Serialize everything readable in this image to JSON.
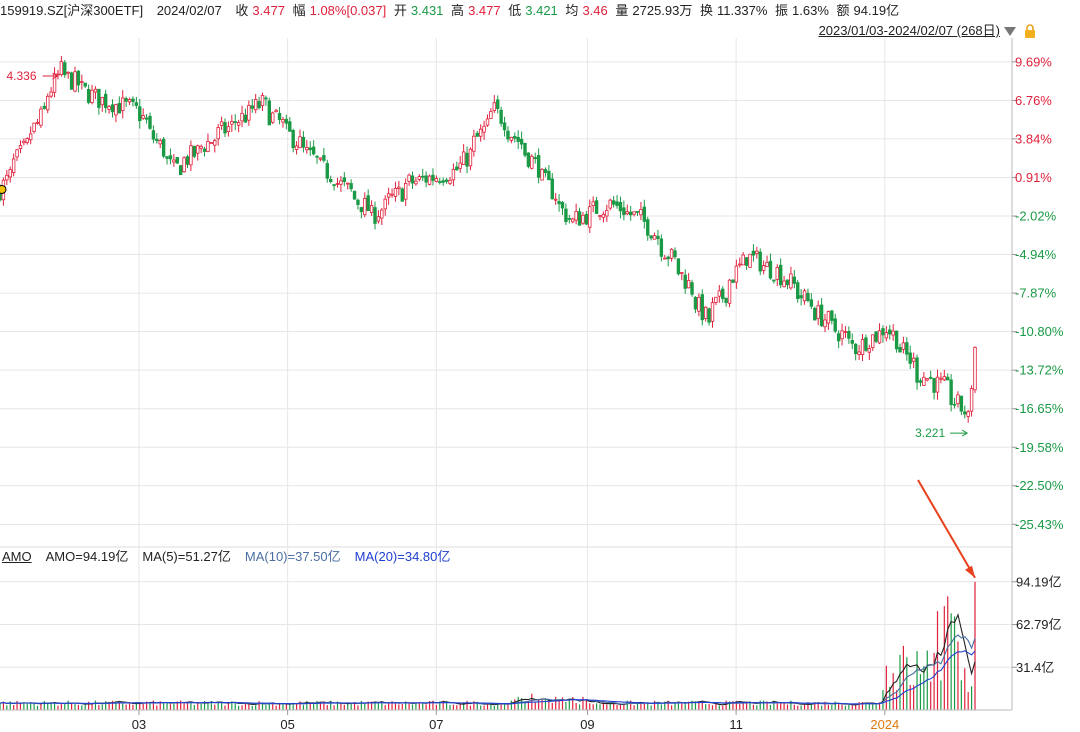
{
  "header": {
    "code": "159919.SZ[沪深300ETF]",
    "date": "2024/02/07",
    "close_label": "收",
    "close": "3.477",
    "chg_label": "幅",
    "chg": "1.08%[0.037]",
    "open_label": "开",
    "open": "3.431",
    "high_label": "高",
    "high": "3.477",
    "low_label": "低",
    "low": "3.421",
    "avg_label": "均",
    "avg": "3.46",
    "vol_label": "量",
    "vol": "2725.93万",
    "turnover_label": "换",
    "turnover": "11.337%",
    "amp_label": "振",
    "amp": "1.63%",
    "amount_label": "额",
    "amount": "94.19亿"
  },
  "range_label": "2023/01/03-2024/02/07 (268日)",
  "colors": {
    "up": "#e0203b",
    "down": "#1a9a45",
    "grid": "#e6e6e6",
    "ma5": "#222222",
    "ma10": "#4a6fa0",
    "ma20": "#1f3fd0",
    "arrow": "#e8401c"
  },
  "amo_legend": {
    "name": "AMO",
    "amo": "AMO=94.19亿",
    "ma5": "MA(5)=51.27亿",
    "ma10": "MA(10)=37.50亿",
    "ma20": "MA(20)=34.80亿"
  },
  "chart_data": [
    {
      "type": "candlestick",
      "title": "",
      "y_scale": "percent change from base close",
      "ylim": [
        -27.0,
        11.5
      ],
      "y_ticks": [
        "9.69%",
        "6.76%",
        "3.84%",
        "0.91%",
        "-2.02%",
        "-4.94%",
        "-7.87%",
        "-10.80%",
        "-13.72%",
        "-16.65%",
        "-19.58%",
        "-22.50%",
        "-25.43%"
      ],
      "y_tick_values": [
        9.69,
        6.76,
        3.84,
        0.91,
        -2.02,
        -4.94,
        -7.87,
        -10.8,
        -13.72,
        -16.65,
        -19.58,
        -22.5,
        -25.43
      ],
      "x_ticks": [
        "03",
        "05",
        "07",
        "09",
        "11",
        "2024"
      ],
      "x_tick_dates": [
        "2023-03",
        "2023-05",
        "2023-07",
        "2023-09",
        "2023-11",
        "2024-01"
      ],
      "annotations": [
        {
          "text": "4.336",
          "type": "period_high",
          "date": "2023-01-27",
          "value": 4.336
        },
        {
          "text": "3.221",
          "type": "period_low",
          "date": "2024-02-05",
          "value": 3.221
        }
      ],
      "trend_keypoints": [
        [
          "2023-01-03",
          0.0
        ],
        [
          "2023-01-18",
          5.0
        ],
        [
          "2023-01-27",
          9.0
        ],
        [
          "2023-02-10",
          7.0
        ],
        [
          "2023-02-28",
          6.0
        ],
        [
          "2023-03-15",
          1.5
        ],
        [
          "2023-04-01",
          4.0
        ],
        [
          "2023-04-20",
          6.5
        ],
        [
          "2023-05-10",
          2.5
        ],
        [
          "2023-05-25",
          0.0
        ],
        [
          "2023-06-05",
          -2.0
        ],
        [
          "2023-06-20",
          0.5
        ],
        [
          "2023-07-10",
          1.5
        ],
        [
          "2023-07-25",
          6.0
        ],
        [
          "2023-08-10",
          2.0
        ],
        [
          "2023-08-25",
          -2.5
        ],
        [
          "2023-09-10",
          -1.0
        ],
        [
          "2023-09-25",
          -2.5
        ],
        [
          "2023-10-10",
          -6.5
        ],
        [
          "2023-10-20",
          -10.0
        ],
        [
          "2023-11-05",
          -5.0
        ],
        [
          "2023-11-20",
          -6.5
        ],
        [
          "2023-12-05",
          -9.5
        ],
        [
          "2023-12-20",
          -12.0
        ],
        [
          "2024-01-02",
          -10.5
        ],
        [
          "2024-01-15",
          -14.0
        ],
        [
          "2024-01-25",
          -15.0
        ],
        [
          "2024-02-05",
          -17.5
        ],
        [
          "2024-02-07",
          -12.0
        ]
      ]
    },
    {
      "type": "bar",
      "title": "AMO",
      "y_ticks": [
        "94.19亿",
        "62.79亿",
        "31.4亿"
      ],
      "y_tick_values": [
        94.19,
        62.79,
        31.4
      ],
      "ylim": [
        0,
        108
      ],
      "unit": "亿",
      "last_value": 94.19,
      "series": [
        {
          "name": "MA(5)",
          "last": 51.27
        },
        {
          "name": "MA(10)",
          "last": 37.5
        },
        {
          "name": "MA(20)",
          "last": 34.8
        }
      ]
    }
  ]
}
